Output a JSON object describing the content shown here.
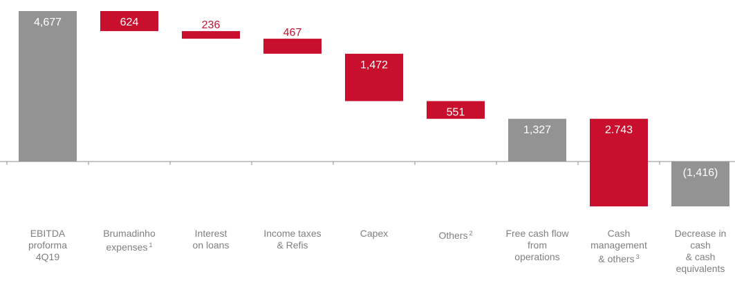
{
  "chart_data": {
    "type": "bar",
    "subtype": "waterfall",
    "title": "",
    "xlabel": "",
    "ylabel": "",
    "grid": false,
    "legend": "none",
    "colors": {
      "total": "#939393",
      "negative": "#c8102e",
      "axis": "#8c8c8c",
      "label_dark": "#c8102e",
      "label_light": "#ffffff",
      "category_text": "#7f7f7f"
    },
    "categories": [
      {
        "lines": [
          "EBITDA",
          "proforma",
          "4Q19"
        ],
        "sup": ""
      },
      {
        "lines": [
          "Brumadinho",
          "expenses"
        ],
        "sup": "1"
      },
      {
        "lines": [
          "Interest",
          "on loans"
        ],
        "sup": ""
      },
      {
        "lines": [
          "Income taxes",
          "& Refis"
        ],
        "sup": ""
      },
      {
        "lines": [
          "Capex"
        ],
        "sup": ""
      },
      {
        "lines": [
          "Others"
        ],
        "sup": "2"
      },
      {
        "lines": [
          "Free cash flow",
          "from",
          "operations"
        ],
        "sup": ""
      },
      {
        "lines": [
          "Cash",
          "management",
          "& others"
        ],
        "sup": "3"
      },
      {
        "lines": [
          "Decrease in",
          "cash",
          "& cash",
          "equivalents"
        ],
        "sup": ""
      }
    ],
    "bars": [
      {
        "label": "4,677",
        "start": 0,
        "end": 4677,
        "kind": "total",
        "label_pos": "inside"
      },
      {
        "label": "624",
        "start": 4677,
        "end": 4053,
        "kind": "negative",
        "label_pos": "inside"
      },
      {
        "label": "236",
        "start": 4053,
        "end": 3817,
        "kind": "negative",
        "label_pos": "above"
      },
      {
        "label": "467",
        "start": 3817,
        "end": 3350,
        "kind": "negative",
        "label_pos": "above"
      },
      {
        "label": "1,472",
        "start": 3350,
        "end": 1878,
        "kind": "negative",
        "label_pos": "inside"
      },
      {
        "label": "551",
        "start": 1878,
        "end": 1327,
        "kind": "negative",
        "label_pos": "inside"
      },
      {
        "label": "1,327",
        "start": 0,
        "end": 1327,
        "kind": "total",
        "label_pos": "inside"
      },
      {
        "label": "2.743",
        "start": 1327,
        "end": -1416,
        "kind": "negative",
        "label_pos": "inside"
      },
      {
        "label": "(1,416)",
        "start": 0,
        "end": -1416,
        "kind": "total",
        "label_pos": "inside"
      }
    ],
    "ylim": [
      -1416,
      4677
    ]
  }
}
